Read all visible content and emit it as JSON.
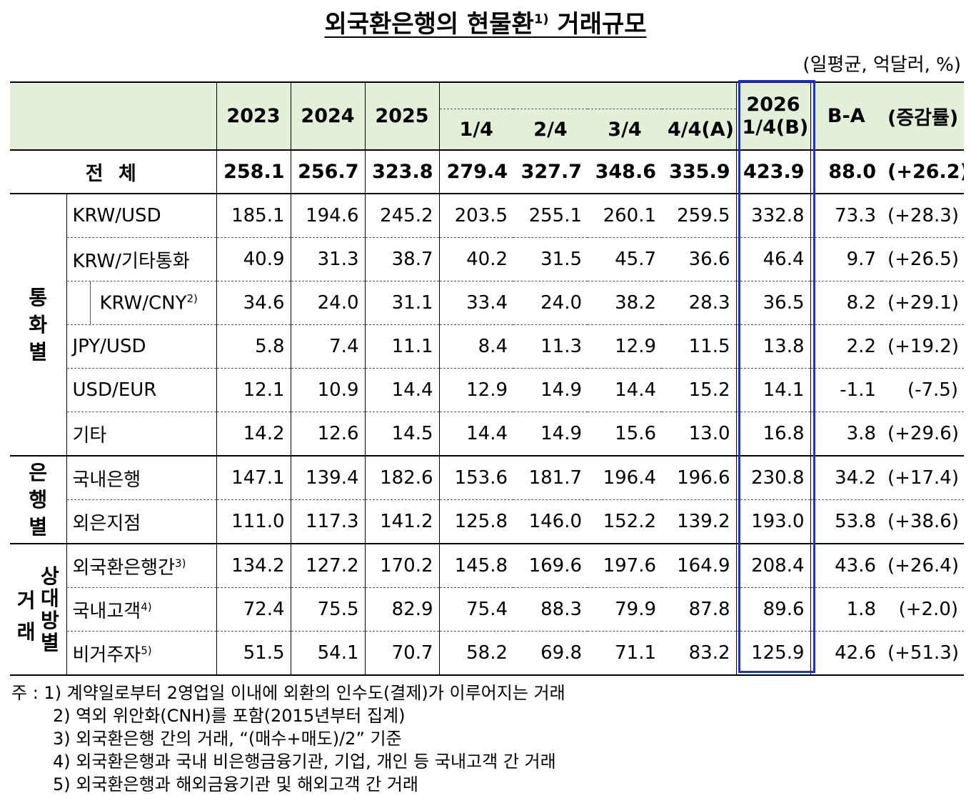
{
  "title": "외국환은행의 현물환",
  "title_sup": "1)",
  "title_tail": "거래규모",
  "unit": "(일평균, 억달러, %)",
  "columns": {
    "y2023": "2023",
    "y2024": "2024",
    "y2025": "2025",
    "q1": "1/4",
    "q2": "2/4",
    "q3": "3/4",
    "q4": "4/4(A)",
    "y2026": "2026",
    "y2026q": "1/4(B)",
    "ba": "B-A",
    "chg": "(증감률)"
  },
  "total": {
    "label": "전  체",
    "values": [
      "258.1",
      "256.7",
      "323.8",
      "279.4",
      "327.7",
      "348.6",
      "335.9",
      "423.9",
      "88.0",
      "(+26.2)"
    ]
  },
  "groups": {
    "currency": "통화별",
    "bank": "은행별",
    "trade": "거래",
    "trade2": "상대방별",
    "trade_left": "거래",
    "trade_right": "상대방별"
  },
  "rows": [
    {
      "label": "KRW/USD",
      "sup": "",
      "values": [
        "185.1",
        "194.6",
        "245.2",
        "203.5",
        "255.1",
        "260.1",
        "259.5",
        "332.8",
        "73.3",
        "(+28.3)"
      ]
    },
    {
      "label": "KRW/기타통화",
      "sup": "",
      "values": [
        "40.9",
        "31.3",
        "38.7",
        "40.2",
        "31.5",
        "45.7",
        "36.6",
        "46.4",
        "9.7",
        "(+26.5)"
      ]
    },
    {
      "label": "KRW/CNY",
      "sup": "2)",
      "values": [
        "34.6",
        "24.0",
        "31.1",
        "33.4",
        "24.0",
        "38.2",
        "28.3",
        "36.5",
        "8.2",
        "(+29.1)"
      ]
    },
    {
      "label": "JPY/USD",
      "sup": "",
      "values": [
        "5.8",
        "7.4",
        "11.1",
        "8.4",
        "11.3",
        "12.9",
        "11.5",
        "13.8",
        "2.2",
        "(+19.2)"
      ]
    },
    {
      "label": "USD/EUR",
      "sup": "",
      "values": [
        "12.1",
        "10.9",
        "14.4",
        "12.9",
        "14.9",
        "14.4",
        "15.2",
        "14.1",
        "-1.1",
        "(-7.5)"
      ]
    },
    {
      "label": "기타",
      "sup": "",
      "values": [
        "14.2",
        "12.6",
        "14.5",
        "14.4",
        "14.9",
        "15.6",
        "13.0",
        "16.8",
        "3.8",
        "(+29.6)"
      ]
    },
    {
      "label": "국내은행",
      "sup": "",
      "values": [
        "147.1",
        "139.4",
        "182.6",
        "153.6",
        "181.7",
        "196.4",
        "196.6",
        "230.8",
        "34.2",
        "(+17.4)"
      ]
    },
    {
      "label": "외은지점",
      "sup": "",
      "values": [
        "111.0",
        "117.3",
        "141.2",
        "125.8",
        "146.0",
        "152.2",
        "139.2",
        "193.0",
        "53.8",
        "(+38.6)"
      ]
    },
    {
      "label": "외국환은행간",
      "sup": "3)",
      "values": [
        "134.2",
        "127.2",
        "170.2",
        "145.8",
        "169.6",
        "197.6",
        "164.9",
        "208.4",
        "43.6",
        "(+26.4)"
      ]
    },
    {
      "label": "국내고객",
      "sup": "4)",
      "values": [
        "72.4",
        "75.5",
        "82.9",
        "75.4",
        "88.3",
        "79.9",
        "87.8",
        "89.6",
        "1.8",
        "(+2.0)"
      ]
    },
    {
      "label": "비거주자",
      "sup": "5)",
      "values": [
        "51.5",
        "54.1",
        "70.7",
        "58.2",
        "69.8",
        "71.1",
        "83.2",
        "125.9",
        "42.6",
        "(+51.3)"
      ]
    }
  ],
  "notes": [
    "주 : 1) 계약일로부터 2영업일 이내에 외환의 인수도(결제)가 이루어지는 거래",
    "2) 역외 위안화(CNH)를 포함(2015년부터 집계)",
    "3) 외국환은행 간의 거래, “(매수+매도)/2” 기준",
    "4) 외국환은행과 국내 비은행금융기관, 기업, 개인 등 국내고객 간 거래",
    "5) 외국환은행과 해외금융기관 및 해외고객 간 거래"
  ]
}
